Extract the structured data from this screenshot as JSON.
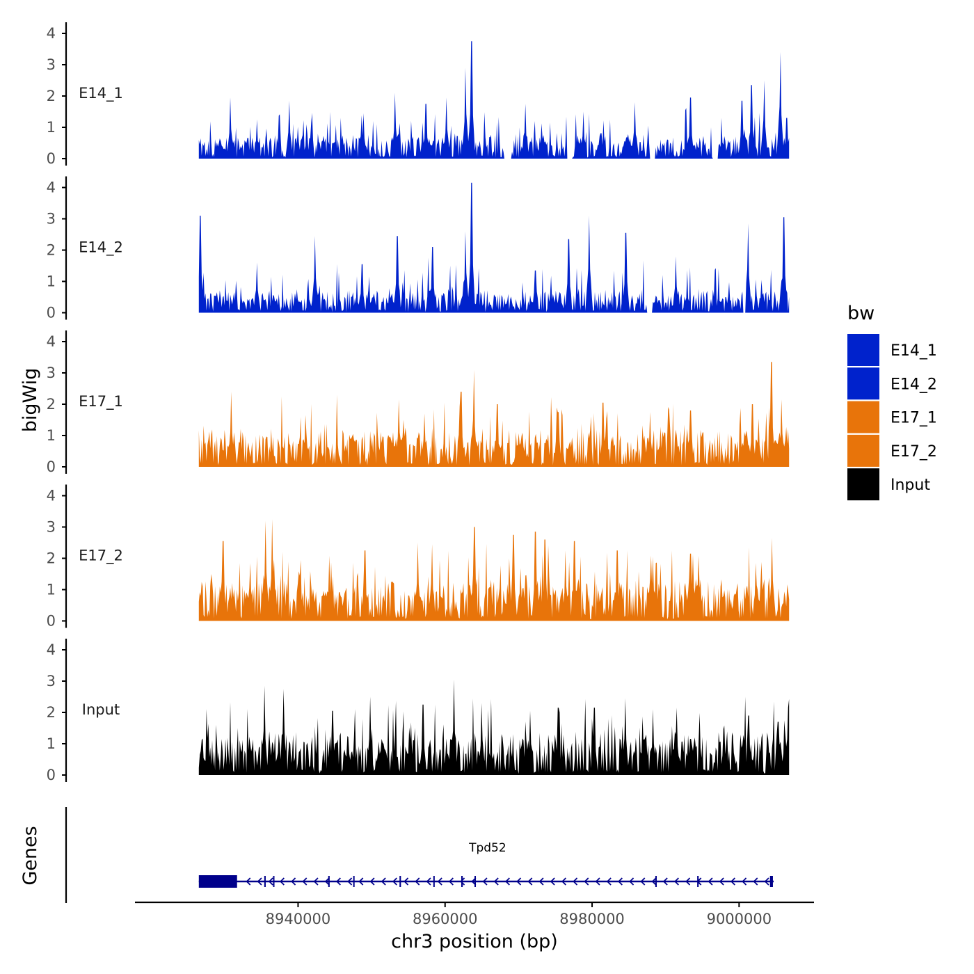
{
  "chart_data": {
    "type": "area",
    "chromosome": "chr3",
    "xlabel": "chr3 position (bp)",
    "ylabel": "bigWig",
    "genes_label": "Genes",
    "xlim": [
      8918000,
      9010000
    ],
    "x_ticks": [
      8940000,
      8960000,
      8980000,
      9000000
    ],
    "x_tick_labels": [
      "8940000",
      "8960000",
      "8980000",
      "9000000"
    ],
    "data_range": [
      8926500,
      9006800
    ],
    "ylim": [
      0,
      4.4
    ],
    "y_ticks": [
      0,
      1,
      2,
      3,
      4
    ],
    "legend": {
      "title": "bw",
      "entries": [
        {
          "label": "E14_1",
          "color": "#0022CC"
        },
        {
          "label": "E14_2",
          "color": "#0022CC"
        },
        {
          "label": "E17_1",
          "color": "#E8740A"
        },
        {
          "label": "E17_2",
          "color": "#E8740A"
        },
        {
          "label": "Input",
          "color": "#000000"
        }
      ]
    },
    "series": [
      {
        "name": "E14_1",
        "color": "#0022CC",
        "baseline": 0.4,
        "noise": 0.55,
        "gaps": [
          [
            8968000,
            8969100
          ],
          [
            8976500,
            8977300
          ],
          [
            8987800,
            8988600
          ],
          [
            8996400,
            8997200
          ]
        ],
        "peaks": [
          [
            8930800,
            1.95
          ],
          [
            8934400,
            1.25
          ],
          [
            8938800,
            1.85
          ],
          [
            8948900,
            1.45
          ],
          [
            8953200,
            2.1
          ],
          [
            8957400,
            1.75
          ],
          [
            8960200,
            1.95
          ],
          [
            8962800,
            2.9
          ],
          [
            8963600,
            3.75
          ],
          [
            8970900,
            1.75
          ],
          [
            8978800,
            1.5
          ],
          [
            8985800,
            1.8
          ],
          [
            8993400,
            1.95
          ],
          [
            9000400,
            1.85
          ],
          [
            9001700,
            2.35
          ],
          [
            9003400,
            2.5
          ],
          [
            9005600,
            3.4
          ],
          [
            9006500,
            1.3
          ]
        ]
      },
      {
        "name": "E14_2",
        "color": "#0022CC",
        "baseline": 0.35,
        "noise": 0.6,
        "gaps": [
          [
            8987500,
            8988200
          ],
          [
            9000500,
            9000900
          ]
        ],
        "peaks": [
          [
            8926700,
            3.1
          ],
          [
            8934400,
            1.6
          ],
          [
            8942300,
            2.45
          ],
          [
            8948700,
            1.55
          ],
          [
            8953500,
            2.45
          ],
          [
            8958300,
            2.1
          ],
          [
            8963600,
            4.15
          ],
          [
            8962800,
            2.6
          ],
          [
            8972300,
            1.35
          ],
          [
            8979600,
            3.1
          ],
          [
            8976800,
            2.35
          ],
          [
            8984600,
            2.55
          ],
          [
            8991400,
            1.8
          ],
          [
            9001200,
            2.85
          ],
          [
            9006100,
            3.05
          ]
        ]
      },
      {
        "name": "E17_1",
        "color": "#E8740A",
        "baseline": 0.7,
        "noise": 0.65,
        "gaps": [],
        "peaks": [
          [
            8930900,
            2.4
          ],
          [
            8941000,
            1.65
          ],
          [
            8953700,
            2.15
          ],
          [
            8957200,
            1.7
          ],
          [
            8962200,
            2.4
          ],
          [
            8963900,
            3.1
          ],
          [
            8967100,
            2.0
          ],
          [
            8975400,
            1.75
          ],
          [
            8981500,
            2.05
          ],
          [
            8987900,
            1.75
          ],
          [
            8993400,
            1.8
          ],
          [
            9001800,
            2.0
          ],
          [
            9005800,
            2.15
          ],
          [
            9004400,
            3.35
          ],
          [
            9006700,
            1.2
          ]
        ]
      },
      {
        "name": "E17_2",
        "color": "#E8740A",
        "baseline": 0.8,
        "noise": 0.75,
        "gaps": [],
        "peaks": [
          [
            8929800,
            2.55
          ],
          [
            8935600,
            3.2
          ],
          [
            8936500,
            3.25
          ],
          [
            8949100,
            2.25
          ],
          [
            8956300,
            2.5
          ],
          [
            8958200,
            2.45
          ],
          [
            8964000,
            3.0
          ],
          [
            8969300,
            2.75
          ],
          [
            8972300,
            2.85
          ],
          [
            8973600,
            2.6
          ],
          [
            8976400,
            2.25
          ],
          [
            8977600,
            2.55
          ],
          [
            8983400,
            2.25
          ],
          [
            8988300,
            2.05
          ],
          [
            8993400,
            2.15
          ],
          [
            9002300,
            1.85
          ],
          [
            9004500,
            2.65
          ]
        ]
      },
      {
        "name": "Input",
        "color": "#000000",
        "baseline": 0.8,
        "noise": 0.85,
        "gaps": [],
        "peaks": [
          [
            8935400,
            2.85
          ],
          [
            8938000,
            2.75
          ],
          [
            8944700,
            2.05
          ],
          [
            8949800,
            2.5
          ],
          [
            8957000,
            2.25
          ],
          [
            8961200,
            3.05
          ],
          [
            8965000,
            2.3
          ],
          [
            8971600,
            2.05
          ],
          [
            8975400,
            2.15
          ],
          [
            8980300,
            2.15
          ],
          [
            8984500,
            2.45
          ],
          [
            8988300,
            2.1
          ],
          [
            8991500,
            2.15
          ],
          [
            9001300,
            1.9
          ],
          [
            9005300,
            1.7
          ]
        ]
      }
    ],
    "gene": {
      "name": "Tpd52",
      "strand": "-",
      "start": 8926500,
      "end": 9004700,
      "exons": [
        [
          8926500,
          8931700
        ],
        [
          8935400,
          8935600
        ],
        [
          8936600,
          8936700
        ],
        [
          8944100,
          8944300
        ],
        [
          8947500,
          8947600
        ],
        [
          8953800,
          8954000
        ],
        [
          8958400,
          8958500
        ],
        [
          8962200,
          8962400
        ],
        [
          8964000,
          8964100
        ],
        [
          8988600,
          8988800
        ],
        [
          8994300,
          8994500
        ],
        [
          9004200,
          9004600
        ]
      ]
    }
  }
}
